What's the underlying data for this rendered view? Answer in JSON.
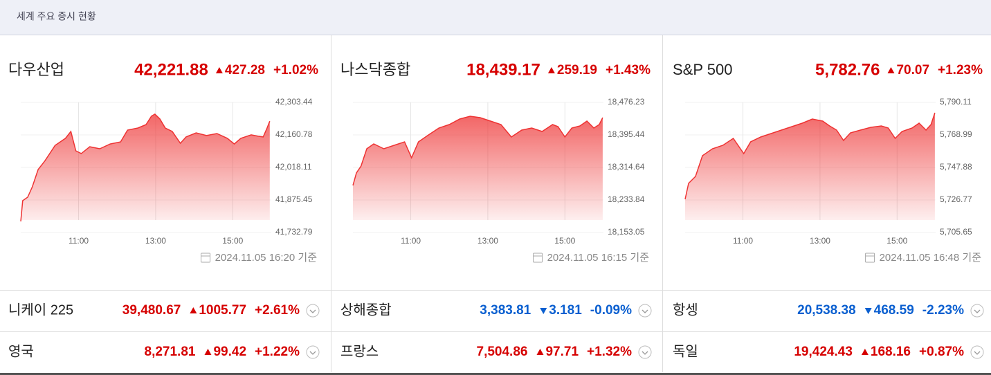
{
  "header": {
    "title": "세계 주요 증시 현황"
  },
  "main_indices": [
    {
      "name": "다우산업",
      "price": "42,221.88",
      "change": "427.28",
      "change_pct": "+1.02%",
      "direction": "up",
      "timestamp": "2024.11.05 16:20 기준"
    },
    {
      "name": "나스닥종합",
      "price": "18,439.17",
      "change": "259.19",
      "change_pct": "+1.43%",
      "direction": "up",
      "timestamp": "2024.11.05 16:15 기준"
    },
    {
      "name": "S&P 500",
      "price": "5,782.76",
      "change": "70.07",
      "change_pct": "+1.23%",
      "direction": "up",
      "timestamp": "2024.11.05 16:48 기준"
    }
  ],
  "chart_data": [
    {
      "type": "area",
      "color": "#ee3333",
      "grid": true,
      "xlim": [
        9.5,
        16
      ],
      "xticks": [
        {
          "value": 11,
          "label": "11:00"
        },
        {
          "value": 13,
          "label": "13:00"
        },
        {
          "value": 15,
          "label": "15:00"
        }
      ],
      "ylim": [
        41732.79,
        42303.44
      ],
      "yticks": [
        {
          "value": 41732.79,
          "label": "41,732.79"
        },
        {
          "value": 41875.45,
          "label": "41,875.45"
        },
        {
          "value": 42018.11,
          "label": "42,018.11"
        },
        {
          "value": 42160.78,
          "label": "42,160.78"
        },
        {
          "value": 42303.44,
          "label": "42,303.44"
        }
      ],
      "x": [
        9.5,
        9.55,
        9.68,
        9.8,
        9.95,
        10.13,
        10.39,
        10.66,
        10.8,
        10.93,
        11.07,
        11.29,
        11.55,
        11.82,
        12.09,
        12.27,
        12.54,
        12.75,
        12.89,
        12.98,
        13.11,
        13.25,
        13.43,
        13.64,
        13.79,
        14.05,
        14.32,
        14.59,
        14.86,
        15.04,
        15.21,
        15.48,
        15.66,
        15.79,
        15.89,
        15.96
      ],
      "values": [
        41781.4,
        41872.5,
        41887.6,
        41933,
        42009,
        42048,
        42115,
        42146,
        42176,
        42091,
        42079,
        42109,
        42100,
        42121,
        42130,
        42182,
        42191,
        42206,
        42243,
        42252,
        42231,
        42191,
        42176,
        42124,
        42152,
        42170,
        42158,
        42167,
        42146,
        42121,
        42146,
        42161,
        42155,
        42152,
        42191,
        42221
      ]
    },
    {
      "type": "area",
      "color": "#ee3333",
      "grid": true,
      "xlim": [
        9.5,
        16
      ],
      "xticks": [
        {
          "value": 11,
          "label": "11:00"
        },
        {
          "value": 13,
          "label": "13:00"
        },
        {
          "value": 15,
          "label": "15:00"
        }
      ],
      "ylim": [
        18153.05,
        18476.23
      ],
      "yticks": [
        {
          "value": 18153.05,
          "label": "18,153.05"
        },
        {
          "value": 18233.84,
          "label": "18,233.84"
        },
        {
          "value": 18314.64,
          "label": "18,314.64"
        },
        {
          "value": 18395.44,
          "label": "18,395.44"
        },
        {
          "value": 18476.23,
          "label": "18,476.23"
        }
      ],
      "x": [
        9.5,
        9.59,
        9.71,
        9.86,
        10.04,
        10.3,
        10.57,
        10.84,
        11.02,
        11.2,
        11.46,
        11.73,
        12.0,
        12.27,
        12.54,
        12.8,
        13.07,
        13.34,
        13.61,
        13.88,
        14.14,
        14.41,
        14.68,
        14.82,
        15.0,
        15.18,
        15.39,
        15.57,
        15.75,
        15.89,
        15.98
      ],
      "values": [
        18269.95,
        18300.9,
        18318.1,
        18361.1,
        18373.1,
        18361.1,
        18369.6,
        18378.2,
        18338.7,
        18378.2,
        18395.4,
        18412.6,
        18421.2,
        18435.0,
        18441.8,
        18438.4,
        18429.8,
        18421.2,
        18390.3,
        18407.5,
        18412.6,
        18404.0,
        18421.2,
        18416.1,
        18390.3,
        18412.6,
        18417.8,
        18429.8,
        18412.6,
        18421.2,
        18438.4
      ]
    },
    {
      "type": "area",
      "color": "#ee3333",
      "grid": true,
      "xlim": [
        9.5,
        16
      ],
      "xticks": [
        {
          "value": 11,
          "label": "11:00"
        },
        {
          "value": 13,
          "label": "13:00"
        },
        {
          "value": 15,
          "label": "15:00"
        }
      ],
      "ylim": [
        5705.65,
        5790.11
      ],
      "yticks": [
        {
          "value": 5705.65,
          "label": "5,705.65"
        },
        {
          "value": 5726.77,
          "label": "5,726.77"
        },
        {
          "value": 5747.88,
          "label": "5,747.88"
        },
        {
          "value": 5768.99,
          "label": "5,768.99"
        },
        {
          "value": 5790.11,
          "label": "5,790.11"
        }
      ],
      "x": [
        9.5,
        9.59,
        9.77,
        9.95,
        10.21,
        10.48,
        10.75,
        11.02,
        11.2,
        11.46,
        11.73,
        12.0,
        12.27,
        12.54,
        12.8,
        13.07,
        13.25,
        13.43,
        13.61,
        13.79,
        14.05,
        14.32,
        14.59,
        14.77,
        14.95,
        15.13,
        15.39,
        15.57,
        15.75,
        15.88,
        15.98
      ],
      "values": [
        5727.21,
        5737.54,
        5742.03,
        5755.51,
        5760.01,
        5762.25,
        5766.75,
        5756.86,
        5764.5,
        5767.64,
        5769.89,
        5772.14,
        5774.38,
        5776.63,
        5779.33,
        5777.98,
        5774.83,
        5772.14,
        5765.4,
        5770.34,
        5772.14,
        5773.93,
        5774.83,
        5773.49,
        5766.75,
        5771.24,
        5773.49,
        5776.63,
        5772.14,
        5775.73,
        5783.37
      ]
    }
  ],
  "other_indices": [
    [
      {
        "name": "니케이 225",
        "price": "39,480.67",
        "change": "1005.77",
        "change_pct": "+2.61%",
        "direction": "up"
      },
      {
        "name": "상해종합",
        "price": "3,383.81",
        "change": "3.181",
        "change_pct": "-0.09%",
        "direction": "down"
      },
      {
        "name": "항셍",
        "price": "20,538.38",
        "change": "468.59",
        "change_pct": "-2.23%",
        "direction": "down"
      }
    ],
    [
      {
        "name": "영국",
        "price": "8,271.81",
        "change": "99.42",
        "change_pct": "+1.22%",
        "direction": "up"
      },
      {
        "name": "프랑스",
        "price": "7,504.86",
        "change": "97.71",
        "change_pct": "+1.32%",
        "direction": "up"
      },
      {
        "name": "독일",
        "price": "19,424.43",
        "change": "168.16",
        "change_pct": "+0.87%",
        "direction": "up"
      }
    ]
  ]
}
